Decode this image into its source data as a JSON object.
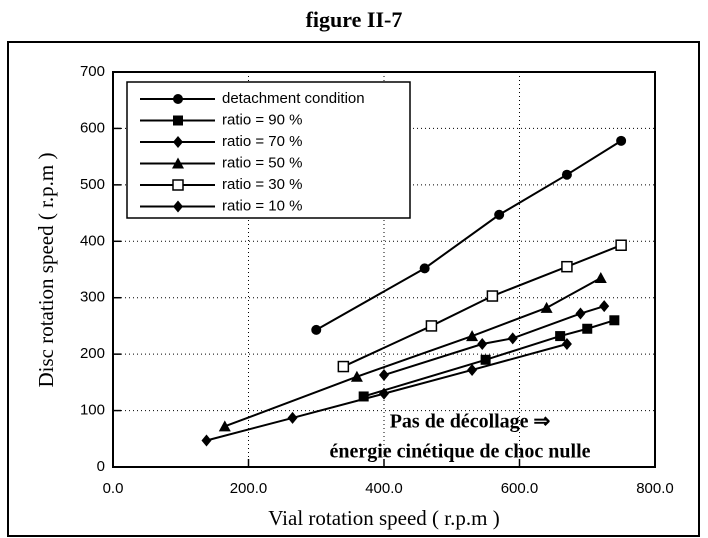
{
  "chart_data": {
    "type": "line",
    "title": "figure II-7",
    "xlabel": "Vial rotation speed ( r.p.m )",
    "ylabel": "Disc rotation speed ( r.p.m )",
    "annotations": [
      "Pas de décollage ⇒",
      "énergie cinétique de choc nulle"
    ],
    "xlim": [
      0,
      800
    ],
    "ylim": [
      0,
      700
    ],
    "xticks": [
      {
        "value": 0,
        "label": "0.0"
      },
      {
        "value": 200,
        "label": "200.0"
      },
      {
        "value": 400,
        "label": "400.0"
      },
      {
        "value": 600,
        "label": "600.0"
      },
      {
        "value": 800,
        "label": "800.0"
      }
    ],
    "yticks": [
      0,
      100,
      200,
      300,
      400,
      500,
      600,
      700
    ],
    "grid": true,
    "legend": "upper left",
    "series": [
      {
        "name": "detachment condition",
        "color": "#000000",
        "marker": "circle",
        "x": [
          300,
          460,
          570,
          670,
          750
        ],
        "values": [
          243,
          352,
          447,
          518,
          578
        ]
      },
      {
        "name": "ratio = 90 %",
        "color": "#000000",
        "marker": "square",
        "x": [
          370,
          550,
          660,
          700,
          740
        ],
        "values": [
          125,
          190,
          232,
          245,
          260
        ]
      },
      {
        "name": "ratio = 70 %",
        "color": "#000000",
        "marker": "diamond",
        "x": [
          400,
          545,
          590,
          690,
          725
        ],
        "values": [
          163,
          218,
          228,
          272,
          285
        ]
      },
      {
        "name": "ratio = 50 %",
        "color": "#000000",
        "marker": "triangle",
        "x": [
          165,
          360,
          530,
          640,
          720
        ],
        "values": [
          72,
          160,
          232,
          282,
          335
        ]
      },
      {
        "name": "ratio = 30 %",
        "color": "#000000",
        "marker": "open-square",
        "x": [
          340,
          470,
          560,
          670,
          750
        ],
        "values": [
          178,
          250,
          303,
          355,
          393
        ]
      },
      {
        "name": "ratio = 10 %",
        "color": "#000000",
        "marker": "diamond",
        "x": [
          138,
          265,
          400,
          530,
          670
        ],
        "values": [
          47,
          87,
          130,
          172,
          218
        ]
      }
    ]
  }
}
